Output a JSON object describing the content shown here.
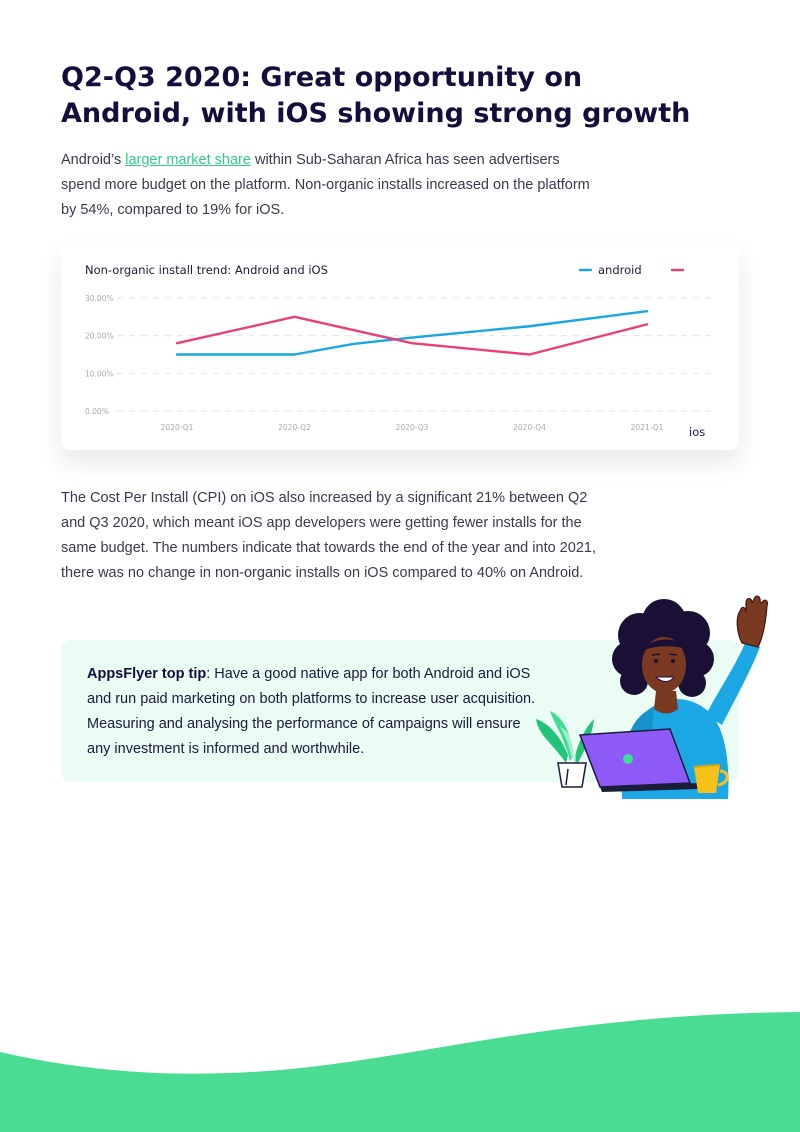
{
  "title": {
    "line1": "Q2-Q3 2020: Great opportunity on",
    "line2": "Android, with iOS showing strong growth"
  },
  "intro": {
    "prefix": "Android’s ",
    "link_text": "larger market share",
    "suffix": " within Sub-Saharan Africa has seen advertisers spend more budget on the platform. Non-organic installs increased on the platform by 54%, compared to  19% for iOS."
  },
  "chart_data": {
    "type": "line",
    "title": "Non-organic install trend: Android and iOS",
    "categories": [
      "2020-Q1",
      "2020-Q2",
      "2020-Q3",
      "2020-Q4",
      "2021-Q1"
    ],
    "y_ticks": [
      "0.00%",
      "10.00%",
      "20.00%",
      "30.00%"
    ],
    "ylim": [
      0,
      30
    ],
    "grid": true,
    "legend_placement": "top-right",
    "series": [
      {
        "name": "android",
        "color": "#1ba6e4",
        "x": [
          0,
          1,
          1.5,
          2,
          3,
          4
        ],
        "values": [
          15,
          15,
          17.8,
          19.5,
          22.5,
          26.5
        ]
      },
      {
        "name": "ios",
        "color": "#e8407a",
        "x": [
          0,
          1,
          2,
          3,
          4
        ],
        "values": [
          18,
          25,
          18,
          15,
          23
        ]
      }
    ]
  },
  "body2": "The Cost Per Install (CPI) on iOS also increased by a significant 21% between Q2 and Q3 2020, which meant iOS app developers were getting fewer installs for the same budget. The numbers indicate that towards the end of the year and into 2021, there was no change in non-organic installs on iOS compared to 40% on Android.",
  "tip": {
    "label": "AppsFlyer top tip",
    "text": ": Have a good native app for both Android and iOS and run paid marketing on both platforms to increase user acquisition. Measuring and analysing the performance of campaigns will ensure any investment is informed and worthwhile."
  },
  "colors": {
    "accent_green": "#4bdc93",
    "link_green": "#2fcc86",
    "tip_background": "#eafcf4",
    "title_navy": "#140e3c"
  }
}
